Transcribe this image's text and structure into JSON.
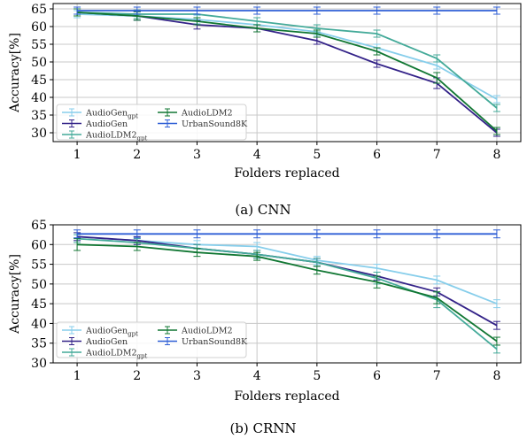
{
  "chart_data": [
    {
      "type": "line",
      "caption": "(a) CNN",
      "xlabel": "Folders replaced",
      "ylabel": "Accuracy[%]",
      "x": [
        1,
        2,
        3,
        4,
        5,
        6,
        7,
        8
      ],
      "xlim": [
        0.6,
        8.4
      ],
      "ylim": [
        27.5,
        66.5
      ],
      "yticks": [
        30,
        35,
        40,
        45,
        50,
        55,
        60,
        65
      ],
      "grid": true,
      "legend_position": "lower-left",
      "series": [
        {
          "name": "AudioGen",
          "name_sub": "gpt",
          "color": "#87ceeb",
          "values": [
            63.5,
            63.0,
            62.0,
            60.5,
            58.5,
            54.0,
            49.0,
            39.5
          ],
          "errors": [
            1.0,
            1.2,
            1.2,
            1.0,
            1.0,
            1.0,
            1.0,
            1.0
          ]
        },
        {
          "name": "AudioGen",
          "name_sub": "",
          "color": "#332288",
          "values": [
            64.0,
            63.0,
            60.5,
            59.5,
            56.0,
            49.5,
            44.0,
            30.0
          ],
          "errors": [
            1.0,
            1.2,
            1.2,
            1.0,
            1.0,
            1.0,
            1.5,
            1.0
          ]
        },
        {
          "name": "AudioLDM2",
          "name_sub": "gpt",
          "color": "#44aa99",
          "values": [
            64.0,
            63.5,
            63.5,
            61.5,
            59.5,
            58.0,
            51.0,
            37.0
          ],
          "errors": [
            1.0,
            1.2,
            1.0,
            1.0,
            1.0,
            1.0,
            1.0,
            1.0
          ]
        },
        {
          "name": "AudioLDM2",
          "name_sub": "",
          "color": "#117733",
          "values": [
            64.0,
            63.0,
            61.5,
            59.5,
            58.0,
            53.0,
            45.5,
            30.5
          ],
          "errors": [
            1.0,
            1.2,
            1.0,
            1.0,
            1.0,
            1.0,
            1.5,
            1.0
          ]
        },
        {
          "name": "UrbanSound8K",
          "name_sub": "",
          "color": "#2f5fd6",
          "values": [
            64.5,
            64.5,
            64.5,
            64.5,
            64.5,
            64.5,
            64.5,
            64.5
          ],
          "errors": [
            1.0,
            1.0,
            1.0,
            1.0,
            1.0,
            1.0,
            1.0,
            1.0
          ]
        }
      ]
    },
    {
      "type": "line",
      "caption": "(b) CRNN",
      "xlabel": "Folders replaced",
      "ylabel": "Accuracy[%]",
      "x": [
        1,
        2,
        3,
        4,
        5,
        6,
        7,
        8
      ],
      "xlim": [
        0.6,
        8.4
      ],
      "ylim": [
        30.0,
        65.0
      ],
      "yticks": [
        30,
        35,
        40,
        45,
        50,
        55,
        60,
        65
      ],
      "grid": true,
      "legend_position": "lower-left",
      "series": [
        {
          "name": "AudioGen",
          "name_sub": "gpt",
          "color": "#87ceeb",
          "values": [
            62.0,
            61.0,
            60.0,
            59.5,
            56.0,
            54.0,
            51.0,
            45.0
          ],
          "errors": [
            1.0,
            1.0,
            1.0,
            1.0,
            1.0,
            1.0,
            1.0,
            1.0
          ]
        },
        {
          "name": "AudioGen",
          "name_sub": "",
          "color": "#332288",
          "values": [
            62.0,
            61.0,
            59.0,
            57.5,
            55.5,
            52.0,
            48.0,
            39.5
          ],
          "errors": [
            1.0,
            1.0,
            1.0,
            1.0,
            1.0,
            1.0,
            1.0,
            1.0
          ]
        },
        {
          "name": "AudioLDM2",
          "name_sub": "gpt",
          "color": "#44aa99",
          "values": [
            61.5,
            60.5,
            59.0,
            57.5,
            55.5,
            51.5,
            46.0,
            33.5
          ],
          "errors": [
            1.0,
            1.0,
            1.0,
            1.0,
            1.0,
            1.5,
            2.0,
            1.0
          ]
        },
        {
          "name": "AudioLDM2",
          "name_sub": "",
          "color": "#117733",
          "values": [
            60.0,
            59.5,
            58.0,
            57.0,
            53.5,
            50.5,
            46.5,
            35.5
          ],
          "errors": [
            1.5,
            1.0,
            1.0,
            1.0,
            1.0,
            1.5,
            1.5,
            1.0
          ]
        },
        {
          "name": "UrbanSound8K",
          "name_sub": "",
          "color": "#2f5fd6",
          "values": [
            62.7,
            62.7,
            62.7,
            62.7,
            62.7,
            62.7,
            62.7,
            62.7
          ],
          "errors": [
            1.0,
            1.0,
            1.0,
            1.0,
            1.0,
            1.0,
            1.0,
            1.0
          ]
        }
      ]
    }
  ]
}
